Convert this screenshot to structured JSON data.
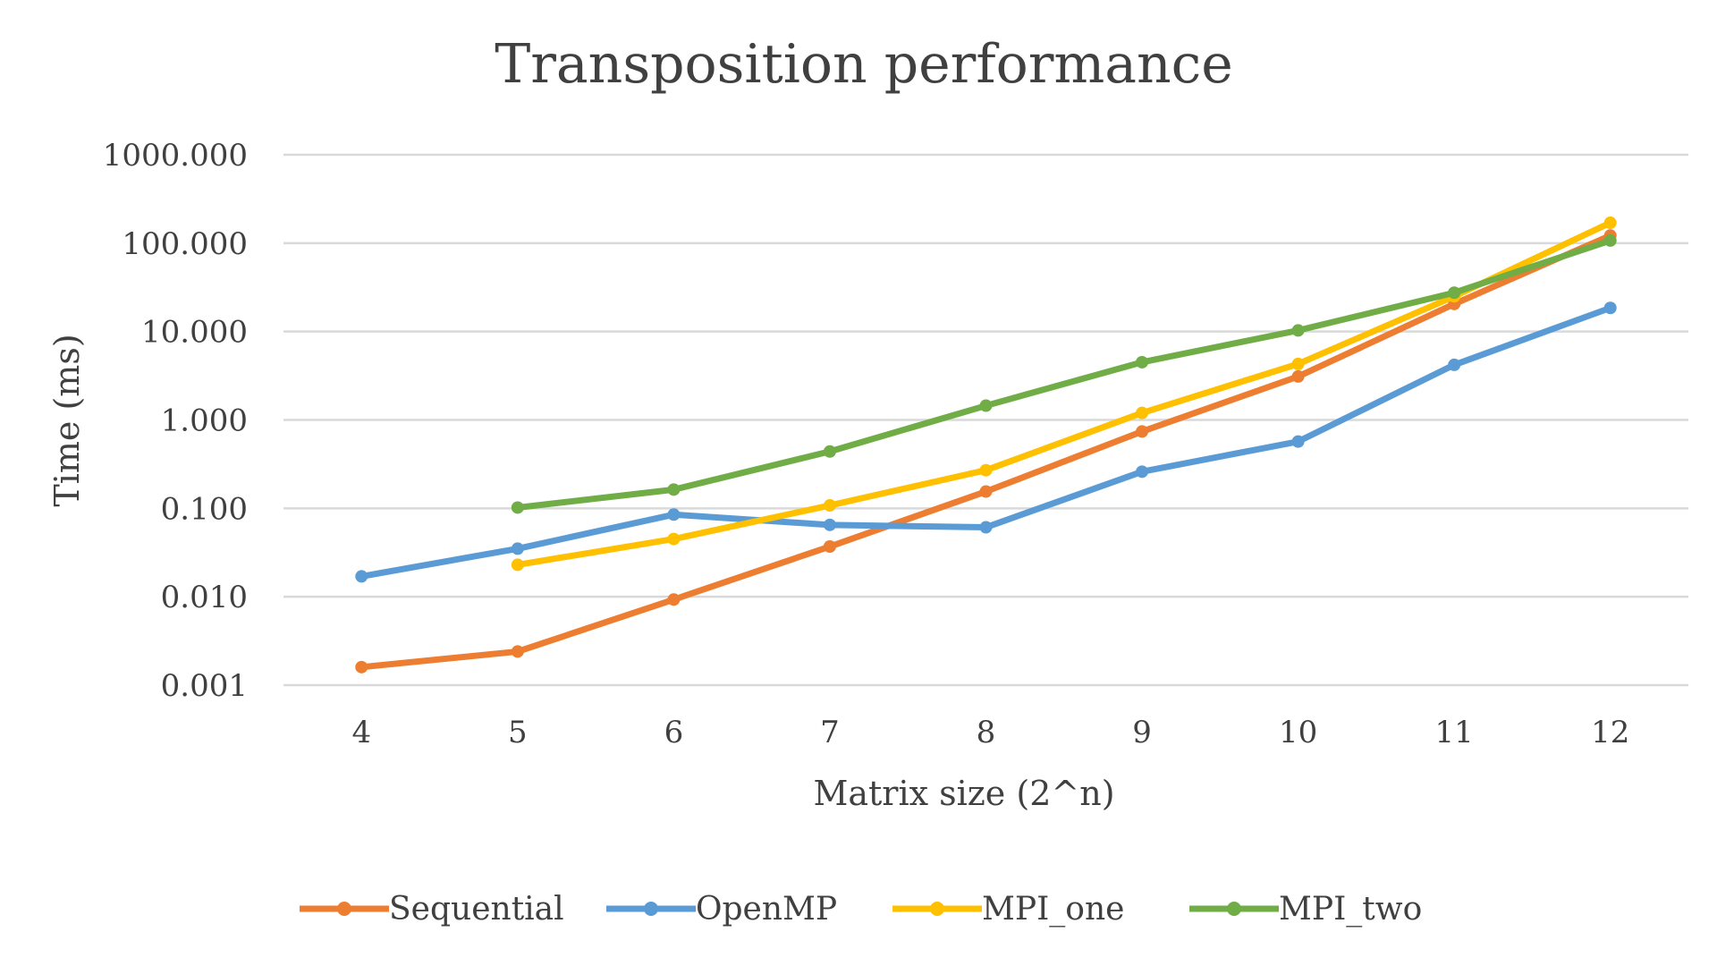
{
  "chart_data": {
    "type": "line",
    "title": "Transposition performance",
    "xlabel": "Matrix size (2^n)",
    "ylabel": "Time (ms)",
    "y_scale": "log",
    "ylim": [
      0.001,
      1000
    ],
    "grid": true,
    "legend_position": "bottom",
    "x": [
      4,
      5,
      6,
      7,
      8,
      9,
      10,
      11,
      12
    ],
    "x_tick_labels": [
      "4",
      "5",
      "6",
      "7",
      "8",
      "9",
      "10",
      "11",
      "12"
    ],
    "y_ticks": [
      0.001,
      0.01,
      0.1,
      1,
      10,
      100,
      1000
    ],
    "y_tick_labels": [
      "0.001",
      "0.010",
      "0.100",
      "1.000",
      "10.000",
      "100.000",
      "1000.000"
    ],
    "series": [
      {
        "name": "Sequential",
        "color": "#ED7D31",
        "values": [
          0.0016,
          0.0024,
          0.0093,
          0.037,
          0.155,
          0.74,
          3.1,
          20.5,
          122
        ]
      },
      {
        "name": "OpenMP",
        "color": "#5B9BD5",
        "values": [
          0.017,
          0.035,
          0.085,
          0.065,
          0.061,
          0.26,
          0.57,
          4.2,
          18.5
        ]
      },
      {
        "name": "MPI_one",
        "color": "#FFC000",
        "values": [
          null,
          0.023,
          0.045,
          0.108,
          0.27,
          1.2,
          4.3,
          25,
          170
        ]
      },
      {
        "name": "MPI_two",
        "color": "#70AD47",
        "values": [
          null,
          0.102,
          0.163,
          0.44,
          1.45,
          4.5,
          10.3,
          27.5,
          107
        ]
      }
    ]
  }
}
